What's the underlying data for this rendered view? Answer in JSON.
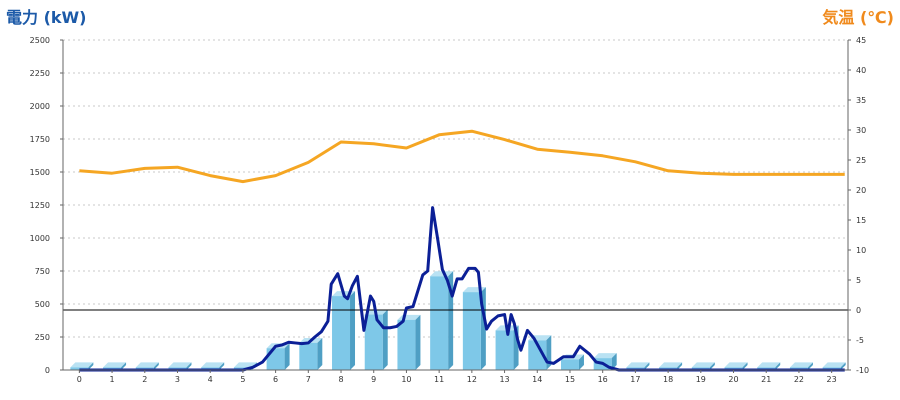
{
  "chart_data": {
    "type": "bar+line",
    "left_axis": {
      "title": "電力 (kW)",
      "range": [
        0,
        2500
      ],
      "ticks": [
        0,
        250,
        500,
        750,
        1000,
        1250,
        1500,
        1750,
        2000,
        2250,
        2500
      ]
    },
    "right_axis": {
      "title": "気温 (℃)",
      "range": [
        -10,
        45
      ],
      "ticks": [
        -10,
        -5,
        0,
        5,
        10,
        15,
        20,
        25,
        30,
        35,
        40,
        45
      ]
    },
    "x_axis": {
      "categories": [
        "0",
        "1",
        "2",
        "3",
        "4",
        "5",
        "6",
        "7",
        "8",
        "9",
        "10",
        "11",
        "12",
        "13",
        "14",
        "15",
        "16",
        "17",
        "18",
        "19",
        "20",
        "21",
        "22",
        "23"
      ]
    },
    "grid": "horizontal-dotted",
    "reference_line": {
      "axis": "left",
      "value": 455
    },
    "bars": {
      "name": "",
      "axis": "left",
      "color": "#7ec8e8",
      "values": [
        20,
        20,
        20,
        20,
        20,
        20,
        165,
        205,
        560,
        420,
        380,
        710,
        590,
        300,
        225,
        80,
        90,
        20,
        20,
        20,
        20,
        20,
        20,
        20
      ]
    },
    "power_line": {
      "name": "",
      "axis": "left",
      "color": "#0b1f96",
      "points": [
        [
          0,
          0
        ],
        [
          5,
          0
        ],
        [
          5.3,
          20
        ],
        [
          5.6,
          60
        ],
        [
          6,
          180
        ],
        [
          6.2,
          190
        ],
        [
          6.4,
          210
        ],
        [
          6.6,
          205
        ],
        [
          6.8,
          200
        ],
        [
          7,
          205
        ],
        [
          7.2,
          250
        ],
        [
          7.4,
          290
        ],
        [
          7.6,
          370
        ],
        [
          7.7,
          650
        ],
        [
          7.9,
          730
        ],
        [
          8.1,
          560
        ],
        [
          8.2,
          540
        ],
        [
          8.35,
          640
        ],
        [
          8.5,
          710
        ],
        [
          8.7,
          300
        ],
        [
          8.9,
          560
        ],
        [
          9,
          520
        ],
        [
          9.1,
          380
        ],
        [
          9.3,
          320
        ],
        [
          9.5,
          320
        ],
        [
          9.7,
          330
        ],
        [
          9.9,
          370
        ],
        [
          10,
          470
        ],
        [
          10.2,
          480
        ],
        [
          10.5,
          720
        ],
        [
          10.65,
          750
        ],
        [
          10.8,
          1230
        ],
        [
          10.95,
          1000
        ],
        [
          11.1,
          760
        ],
        [
          11.25,
          680
        ],
        [
          11.4,
          560
        ],
        [
          11.55,
          690
        ],
        [
          11.7,
          690
        ],
        [
          11.9,
          770
        ],
        [
          12.1,
          770
        ],
        [
          12.2,
          740
        ],
        [
          12.3,
          500
        ],
        [
          12.45,
          310
        ],
        [
          12.6,
          370
        ],
        [
          12.8,
          410
        ],
        [
          13,
          420
        ],
        [
          13.1,
          270
        ],
        [
          13.2,
          420
        ],
        [
          13.3,
          350
        ],
        [
          13.4,
          230
        ],
        [
          13.5,
          150
        ],
        [
          13.7,
          300
        ],
        [
          13.9,
          240
        ],
        [
          14.1,
          150
        ],
        [
          14.3,
          60
        ],
        [
          14.5,
          50
        ],
        [
          14.8,
          100
        ],
        [
          15.1,
          100
        ],
        [
          15.3,
          180
        ],
        [
          15.6,
          120
        ],
        [
          15.8,
          60
        ],
        [
          16,
          50
        ],
        [
          16.2,
          20
        ],
        [
          16.5,
          0
        ],
        [
          23.4,
          0
        ]
      ]
    },
    "temperature_line": {
      "name": "",
      "axis": "right",
      "color": "#f5a623",
      "points": [
        [
          0,
          23.2
        ],
        [
          1,
          22.8
        ],
        [
          2,
          23.6
        ],
        [
          3,
          23.8
        ],
        [
          4,
          22.4
        ],
        [
          5,
          21.4
        ],
        [
          6,
          22.4
        ],
        [
          7,
          24.6
        ],
        [
          8,
          28
        ],
        [
          9,
          27.7
        ],
        [
          10,
          27
        ],
        [
          11,
          29.2
        ],
        [
          12,
          29.8
        ],
        [
          13,
          28.4
        ],
        [
          14,
          26.8
        ],
        [
          15,
          26.3
        ],
        [
          16,
          25.7
        ],
        [
          17,
          24.7
        ],
        [
          18,
          23.2
        ],
        [
          19,
          22.8
        ],
        [
          20,
          22.6
        ],
        [
          21,
          22.6
        ],
        [
          22,
          22.6
        ],
        [
          23,
          22.6
        ],
        [
          23.4,
          22.6
        ]
      ]
    }
  }
}
